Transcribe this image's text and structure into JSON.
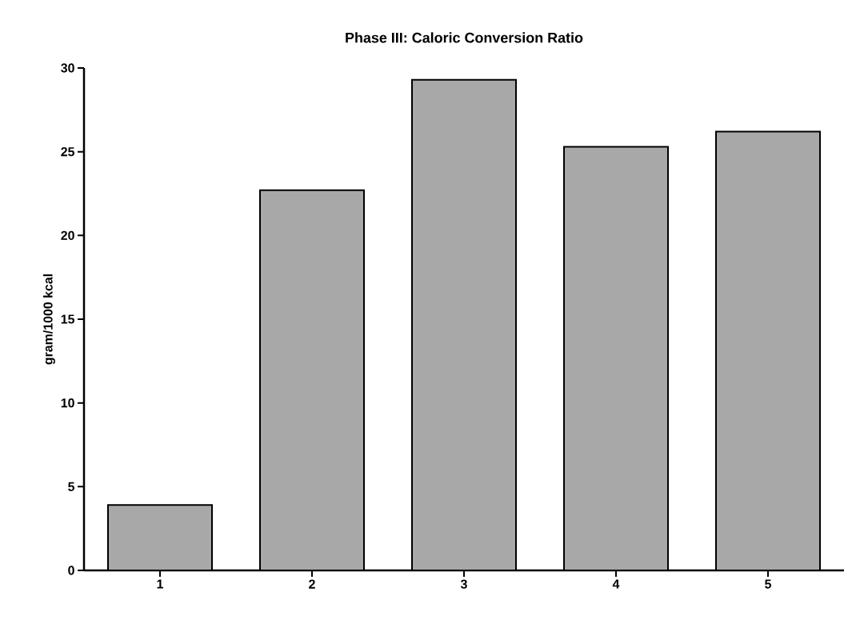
{
  "chart_data": {
    "type": "bar",
    "title": "Phase III: Caloric Conversion Ratio",
    "ylabel": "gram/1000  kcal",
    "categories": [
      "1",
      "2",
      "3",
      "4",
      "5"
    ],
    "values": [
      3.9,
      22.7,
      29.3,
      25.3,
      26.2
    ],
    "color": "#a8a8a8",
    "ylim": [
      0,
      30
    ],
    "yticks": [
      0,
      5,
      10,
      15,
      20,
      25,
      30
    ]
  }
}
